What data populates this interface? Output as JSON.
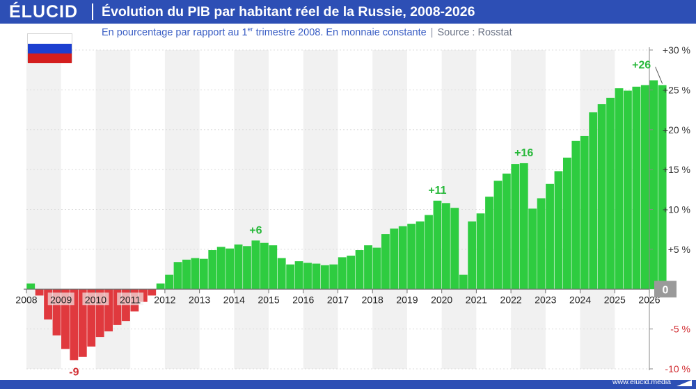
{
  "brand": {
    "name": "ÉLUCID",
    "url": "www.elucid.media"
  },
  "title": "Évolution du PIB par habitant réel de la Russie, 2008-2026",
  "subtitle": {
    "text_a": "En pourcentage par rapport au 1",
    "text_sup": "er",
    "text_b": " trimestre 2008. En monnaie constante",
    "separator": "|",
    "source": "Source : Rosstat"
  },
  "icons": {
    "flag": "russia-flag-icon",
    "footer_mark": "elucid-mark-icon"
  },
  "colors": {
    "brand_blue": "#2d4fb5",
    "positive": "#2ecc40",
    "negative": "#e0393e",
    "band": "#f1f1f1",
    "zero_label_bg": "#9a9a9a",
    "flag_white": "#ffffff",
    "flag_blue": "#1c3fd0",
    "flag_red": "#d41e1e"
  },
  "chart_data": {
    "type": "bar",
    "title": "Évolution du PIB par habitant réel de la Russie, 2008-2026",
    "xlabel": "",
    "ylabel": "",
    "ylim": [
      -10,
      30
    ],
    "xlim": [
      2008,
      2026
    ],
    "frequency": "quarterly",
    "grid": true,
    "legend": "none",
    "y_ticks": [
      {
        "value": 30,
        "label": "+30 %"
      },
      {
        "value": 25,
        "label": "+25 %"
      },
      {
        "value": 20,
        "label": "+20 %"
      },
      {
        "value": 15,
        "label": "+15 %"
      },
      {
        "value": 10,
        "label": "+10 %"
      },
      {
        "value": 5,
        "label": "+5 %"
      },
      {
        "value": 0,
        "label": "0"
      },
      {
        "value": -5,
        "label": "-5 %"
      },
      {
        "value": -10,
        "label": "-10 %"
      }
    ],
    "x_ticks": [
      "2008",
      "2009",
      "2010",
      "2011",
      "2012",
      "2013",
      "2014",
      "2015",
      "2016",
      "2017",
      "2018",
      "2019",
      "2020",
      "2021",
      "2022",
      "2023",
      "2024",
      "2025",
      "2026"
    ],
    "values": [
      0.7,
      -0.8,
      -3.8,
      -5.8,
      -7.5,
      -8.9,
      -8.5,
      -7.2,
      -6.0,
      -5.3,
      -4.5,
      -4.0,
      -2.8,
      -1.6,
      -0.8,
      0.7,
      1.8,
      3.4,
      3.7,
      3.9,
      3.8,
      4.9,
      5.3,
      5.1,
      5.6,
      5.4,
      6.1,
      5.8,
      5.5,
      3.9,
      3.1,
      3.5,
      3.3,
      3.2,
      3.0,
      3.1,
      4.0,
      4.2,
      4.9,
      5.5,
      5.2,
      6.9,
      7.6,
      7.9,
      8.2,
      8.5,
      9.3,
      11.1,
      10.8,
      10.2,
      1.8,
      8.5,
      9.5,
      11.6,
      13.6,
      14.5,
      15.7,
      15.8,
      10.1,
      11.4,
      13.2,
      14.8,
      16.5,
      18.6,
      19.2,
      22.2,
      23.2,
      24.0,
      25.2,
      24.9,
      25.4,
      25.6,
      26.2,
      25.6
    ],
    "annotations": [
      {
        "label": "-9",
        "x_index": 5,
        "value": -8.9,
        "color": "negative"
      },
      {
        "label": "+6",
        "x_index": 26,
        "value": 6.1,
        "color": "positive"
      },
      {
        "label": "+11",
        "x_index": 47,
        "value": 11.1,
        "color": "positive"
      },
      {
        "label": "+16",
        "x_index": 57,
        "value": 15.8,
        "color": "positive"
      },
      {
        "label": "+26",
        "x_index": 73,
        "value": 25.6,
        "color": "positive",
        "leader": true
      }
    ]
  }
}
